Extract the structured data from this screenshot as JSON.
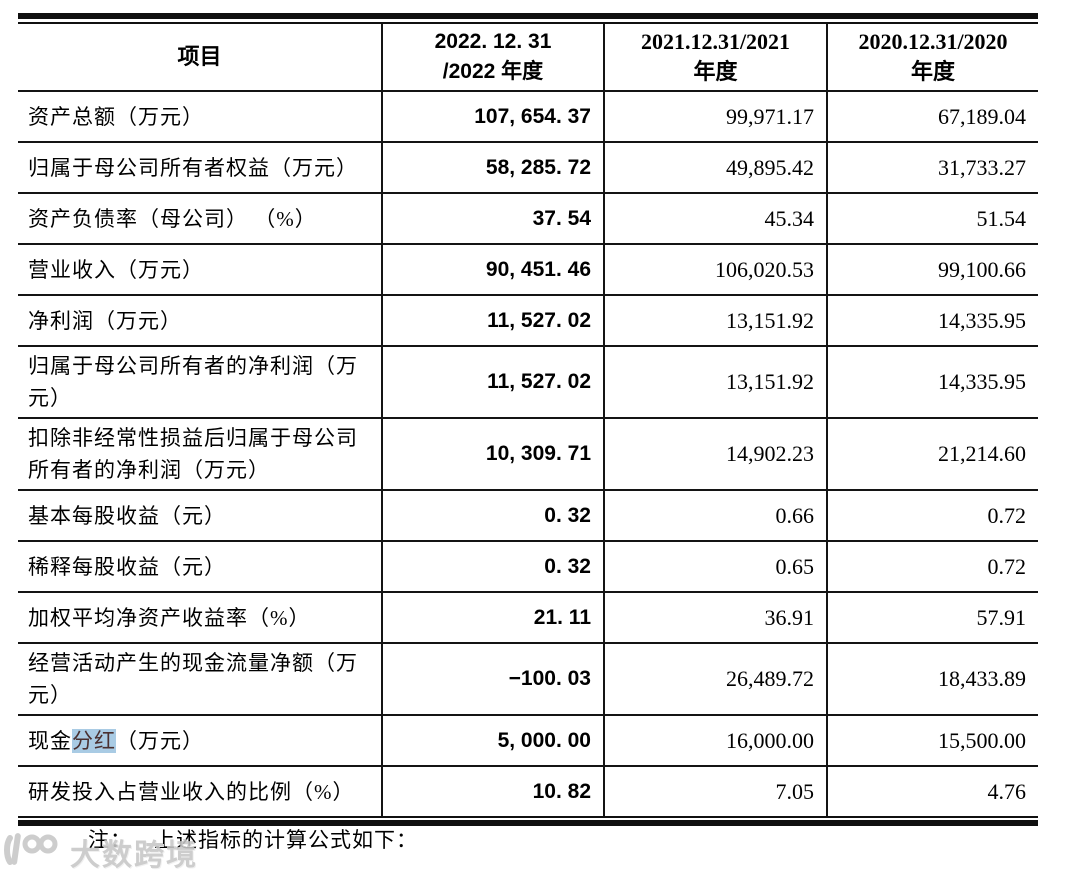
{
  "table": {
    "header": {
      "item_label": "项目",
      "col_2022": {
        "line1": "2022. 12. 31",
        "line2": "/2022 年度"
      },
      "col_2021": {
        "line1": "2021.12.31/2021",
        "line2": "年度"
      },
      "col_2020": {
        "line1": "2020.12.31/2020",
        "line2": "年度"
      }
    },
    "rows": [
      {
        "label": "资产总额（万元）",
        "v2022": "107, 654. 37",
        "v2021": "99,971.17",
        "v2020": "67,189.04"
      },
      {
        "label": "归属于母公司所有者权益（万元）",
        "v2022": "58, 285. 72",
        "v2021": "49,895.42",
        "v2020": "31,733.27"
      },
      {
        "label": "资产负债率（母公司） （%）",
        "v2022": "37. 54",
        "v2021": "45.34",
        "v2020": "51.54"
      },
      {
        "label": "营业收入（万元）",
        "v2022": "90, 451. 46",
        "v2021": "106,020.53",
        "v2020": "99,100.66"
      },
      {
        "label": "净利润（万元）",
        "v2022": "11, 527. 02",
        "v2021": "13,151.92",
        "v2020": "14,335.95"
      },
      {
        "label": "归属于母公司所有者的净利润（万元）",
        "v2022": "11, 527. 02",
        "v2021": "13,151.92",
        "v2020": "14,335.95"
      },
      {
        "label": "扣除非经常性损益后归属于母公司所有者的净利润（万元）",
        "v2022": "10, 309. 71",
        "v2021": "14,902.23",
        "v2020": "21,214.60"
      },
      {
        "label": "基本每股收益（元）",
        "v2022": "0. 32",
        "v2021": "0.66",
        "v2020": "0.72"
      },
      {
        "label": "稀释每股收益（元）",
        "v2022": "0. 32",
        "v2021": "0.65",
        "v2020": "0.72"
      },
      {
        "label": "加权平均净资产收益率（%）",
        "v2022": "21. 11",
        "v2021": "36.91",
        "v2020": "57.91"
      },
      {
        "label": "经营活动产生的现金流量净额（万元）",
        "v2022": "−100. 03",
        "v2021": "26,489.72",
        "v2020": "18,433.89"
      },
      {
        "label": "现金分红（万元）",
        "highlight": "分红",
        "v2022": "5, 000. 00",
        "v2021": "16,000.00",
        "v2020": "15,500.00"
      },
      {
        "label": "研发投入占营业收入的比例（%）",
        "v2022": "10. 82",
        "v2021": "7.05",
        "v2020": "4.76"
      }
    ]
  },
  "note": {
    "prefix": "注：",
    "text": "上述指标的计算公式如下："
  },
  "watermark": {
    "text": "大数跨境"
  },
  "colors": {
    "highlight_bg": "#a9cbe4",
    "border": "#141414",
    "watermark": "#c7c7c7"
  }
}
